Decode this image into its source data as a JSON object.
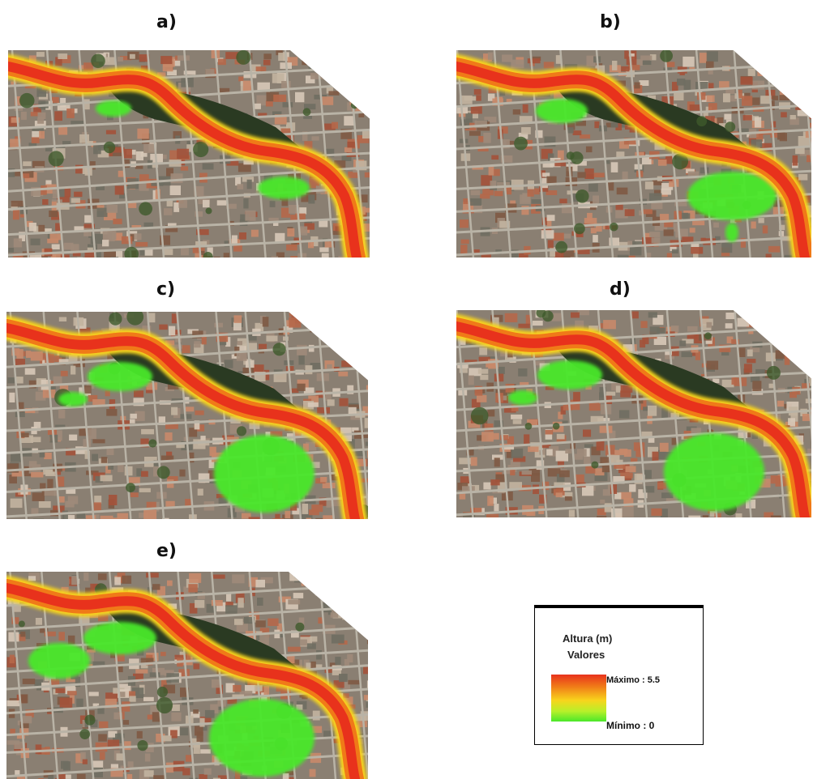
{
  "panels": [
    {
      "label": "a)",
      "flood_extent": "small"
    },
    {
      "label": "b)",
      "flood_extent": "medium"
    },
    {
      "label": "c)",
      "flood_extent": "large"
    },
    {
      "label": "d)",
      "flood_extent": "large"
    },
    {
      "label": "e)",
      "flood_extent": "largest"
    }
  ],
  "legend": {
    "title": "Altura (m)",
    "subtitle": "Valores",
    "max_label": "Máximo : 5.5",
    "min_label": "Mínimo : 0",
    "max_value": 5.5,
    "min_value": 0,
    "colors": [
      "#e8321c",
      "#f07a18",
      "#f8d41c",
      "#b8f02a",
      "#4ae82a"
    ]
  }
}
